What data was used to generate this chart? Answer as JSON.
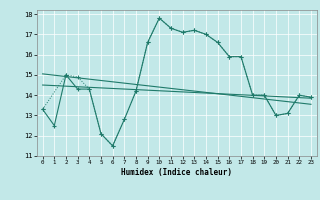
{
  "xlabel": "Humidex (Indice chaleur)",
  "xlim": [
    -0.5,
    23.5
  ],
  "ylim": [
    11,
    18.2
  ],
  "yticks": [
    11,
    12,
    13,
    14,
    15,
    16,
    17,
    18
  ],
  "xticks": [
    0,
    1,
    2,
    3,
    4,
    5,
    6,
    7,
    8,
    9,
    10,
    11,
    12,
    13,
    14,
    15,
    16,
    17,
    18,
    19,
    20,
    21,
    22,
    23
  ],
  "bg_color": "#c2e8e8",
  "line_color": "#1f7a6a",
  "series_main": {
    "x": [
      0,
      1,
      2,
      3,
      4,
      5,
      6,
      7,
      8,
      9,
      10,
      11,
      12,
      13,
      14,
      15,
      16,
      17,
      18,
      19,
      20,
      21,
      22,
      23
    ],
    "y": [
      13.3,
      12.5,
      15.0,
      14.3,
      14.3,
      12.1,
      11.5,
      12.8,
      14.2,
      16.6,
      17.8,
      17.3,
      17.1,
      17.2,
      17.0,
      16.6,
      15.9,
      15.9,
      14.0,
      14.0,
      13.0,
      13.1,
      14.0,
      13.9
    ]
  },
  "series_dotted": {
    "x": [
      0,
      2,
      3,
      4,
      5,
      6,
      7,
      8,
      9,
      10,
      11,
      12,
      13,
      14,
      15,
      16,
      17,
      18,
      19,
      20,
      21,
      22,
      23
    ],
    "y": [
      13.3,
      15.0,
      14.9,
      14.3,
      12.1,
      11.5,
      12.8,
      14.2,
      16.6,
      17.8,
      17.3,
      17.1,
      17.2,
      17.0,
      16.6,
      15.9,
      15.9,
      14.0,
      14.0,
      13.0,
      13.1,
      14.0,
      13.9
    ]
  },
  "regression1": {
    "x": [
      0,
      23
    ],
    "y": [
      15.05,
      13.55
    ]
  },
  "regression2": {
    "x": [
      0,
      23
    ],
    "y": [
      14.5,
      13.85
    ]
  }
}
